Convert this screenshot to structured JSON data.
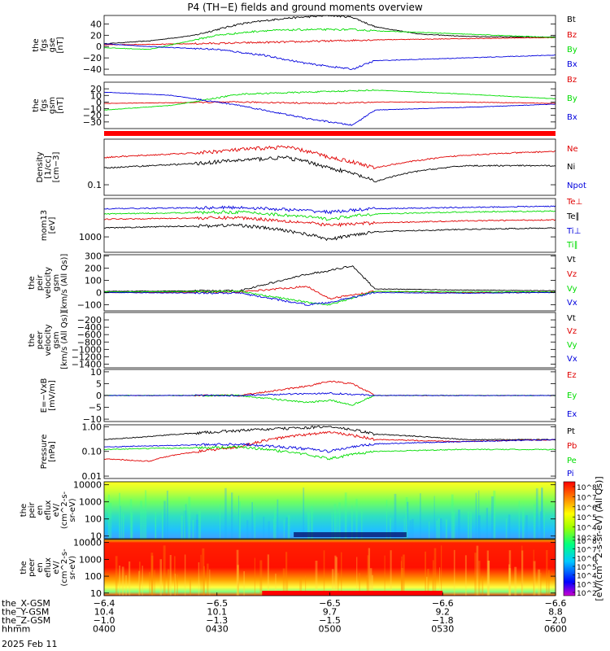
{
  "title": "P4 (TH−E) fields and ground moments overview",
  "date_label": "2025 Feb 11",
  "colors": {
    "black": "#000000",
    "red": "#e00000",
    "green": "#00dd00",
    "blue": "#0000dd",
    "strip": "#ff0000"
  },
  "chart_data": [
    {
      "type": "line",
      "id": "fgs_gse",
      "ylabel": [
        "the",
        "fgs",
        "gse",
        "[nT]"
      ],
      "ylim": [
        -50,
        55
      ],
      "yticks": [
        "40",
        "20",
        "0",
        "−20",
        "−40"
      ],
      "ytick_values": [
        40,
        20,
        0,
        -20,
        -40
      ],
      "series": [
        {
          "name": "Bt",
          "color": "#000000",
          "x": [
            0,
            0.1,
            0.2,
            0.25,
            0.3,
            0.4,
            0.5,
            0.55,
            0.6,
            0.7,
            0.8,
            0.9,
            1
          ],
          "y": [
            5,
            10,
            20,
            30,
            40,
            50,
            55,
            52,
            35,
            22,
            18,
            17,
            17
          ]
        },
        {
          "name": "Bz",
          "color": "#e00000",
          "x": [
            0,
            0.2,
            0.4,
            0.5,
            0.6,
            0.8,
            1
          ],
          "y": [
            3,
            5,
            8,
            10,
            12,
            14,
            16
          ]
        },
        {
          "name": "By",
          "color": "#00dd00",
          "x": [
            0,
            0.1,
            0.25,
            0.35,
            0.45,
            0.55,
            0.6,
            0.8,
            1
          ],
          "y": [
            -2,
            -5,
            20,
            28,
            30,
            30,
            28,
            22,
            16
          ]
        },
        {
          "name": "Bx",
          "color": "#0000dd",
          "x": [
            0,
            0.1,
            0.25,
            0.35,
            0.45,
            0.55,
            0.6,
            0.8,
            1
          ],
          "y": [
            5,
            0,
            -5,
            -15,
            -30,
            -40,
            -25,
            -20,
            -15
          ]
        }
      ]
    },
    {
      "type": "line",
      "id": "fgs_gsm",
      "ylabel": [
        "the",
        "fgs",
        "gsm",
        "[nT]"
      ],
      "ylim": [
        -40,
        30
      ],
      "yticks": [
        "20",
        "10",
        "0",
        "−10",
        "−20",
        "−30"
      ],
      "ytick_values": [
        20,
        10,
        0,
        -10,
        -20,
        -30
      ],
      "series": [
        {
          "name": "Bz",
          "color": "#e00000",
          "x": [
            0,
            0.3,
            0.5,
            0.6,
            0.8,
            1
          ],
          "y": [
            -2,
            0,
            -2,
            0,
            0,
            -2
          ]
        },
        {
          "name": "By",
          "color": "#00dd00",
          "x": [
            0,
            0.15,
            0.3,
            0.45,
            0.6,
            0.8,
            1
          ],
          "y": [
            -12,
            -5,
            12,
            15,
            18,
            12,
            5
          ]
        },
        {
          "name": "Bx",
          "color": "#0000dd",
          "x": [
            0,
            0.15,
            0.3,
            0.45,
            0.55,
            0.6,
            0.8,
            1
          ],
          "y": [
            15,
            10,
            -5,
            -25,
            -35,
            -12,
            -8,
            -3
          ]
        }
      ]
    },
    {
      "type": "line",
      "id": "density",
      "log": true,
      "ylabel": [
        "Density",
        "[1/cc]",
        "[cm−3]"
      ],
      "ylim": [
        0.05,
        2.0
      ],
      "yticks": [
        "0.1"
      ],
      "ytick_values": [
        0.1
      ],
      "series": [
        {
          "name": "Ne",
          "color": "#e00000",
          "x": [
            0,
            0.2,
            0.4,
            0.5,
            0.6,
            0.7,
            0.8,
            1
          ],
          "y": [
            0.6,
            0.8,
            1.2,
            0.6,
            0.3,
            0.5,
            0.7,
            0.9
          ]
        },
        {
          "name": "Ni",
          "color": "#000000",
          "x": [
            0,
            0.2,
            0.4,
            0.5,
            0.6,
            0.7,
            0.8,
            1
          ],
          "y": [
            0.3,
            0.4,
            0.6,
            0.3,
            0.12,
            0.25,
            0.35,
            0.35
          ]
        },
        {
          "name": "Npot",
          "color": "#0000dd",
          "x": [],
          "y": []
        }
      ]
    },
    {
      "type": "line",
      "id": "temperature",
      "log": true,
      "ylabel": [
        "mom13",
        "[eV]"
      ],
      "ylim": [
        300,
        20000
      ],
      "yticks": [
        "1000"
      ],
      "ytick_values": [
        1000
      ],
      "series": [
        {
          "name": "Te⊥",
          "color": "#e00000",
          "x": [
            0,
            0.3,
            0.5,
            0.6,
            0.8,
            1
          ],
          "y": [
            4000,
            4500,
            2500,
            3000,
            3500,
            3800
          ]
        },
        {
          "name": "Te∥",
          "color": "#000000",
          "x": [
            0,
            0.3,
            0.5,
            0.6,
            0.8,
            1
          ],
          "y": [
            2000,
            2500,
            800,
            1500,
            1800,
            2000
          ]
        },
        {
          "name": "Ti⊥",
          "color": "#0000dd",
          "x": [
            0,
            0.3,
            0.5,
            0.6,
            0.8,
            1
          ],
          "y": [
            9000,
            10000,
            7000,
            9000,
            10000,
            11000
          ]
        },
        {
          "name": "Ti∥",
          "color": "#00dd00",
          "x": [
            0,
            0.3,
            0.5,
            0.6,
            0.8,
            1
          ],
          "y": [
            6000,
            7000,
            4000,
            6000,
            7000,
            7500
          ]
        }
      ]
    },
    {
      "type": "line",
      "id": "peir_velocity",
      "ylabel": [
        "the",
        "peir",
        "velocity",
        "gsm",
        "[km/s (All Qs)]"
      ],
      "ylim": [
        -150,
        310
      ],
      "yticks": [
        "300",
        "200",
        "100",
        "0",
        "−100"
      ],
      "ytick_values": [
        300,
        200,
        100,
        0,
        -100
      ],
      "series": [
        {
          "name": "Vt",
          "color": "#000000",
          "x": [
            0,
            0.3,
            0.45,
            0.5,
            0.55,
            0.6,
            0.8,
            1
          ],
          "y": [
            10,
            15,
            150,
            180,
            220,
            30,
            20,
            15
          ]
        },
        {
          "name": "Vz",
          "color": "#e00000",
          "x": [
            0,
            0.3,
            0.45,
            0.5,
            0.6,
            0.8,
            1
          ],
          "y": [
            0,
            5,
            50,
            -50,
            10,
            0,
            5
          ]
        },
        {
          "name": "Vy",
          "color": "#00dd00",
          "x": [
            0,
            0.3,
            0.45,
            0.5,
            0.6,
            0.8,
            1
          ],
          "y": [
            5,
            10,
            -80,
            -100,
            10,
            5,
            5
          ]
        },
        {
          "name": "Vx",
          "color": "#0000dd",
          "x": [
            0,
            0.3,
            0.45,
            0.5,
            0.6,
            0.8,
            1
          ],
          "y": [
            0,
            -5,
            -100,
            -80,
            0,
            -5,
            0
          ]
        }
      ]
    },
    {
      "type": "line",
      "id": "peer_velocity",
      "ylabel": [
        "the",
        "peer",
        "velocity",
        "gsm",
        "[km/s (All Qs)]"
      ],
      "ylim": [
        -1500,
        0
      ],
      "yticks": [
        "−200",
        "−400",
        "−600",
        "−800",
        "−1000",
        "−1200",
        "−1400"
      ],
      "ytick_values": [
        -200,
        -400,
        -600,
        -800,
        -1000,
        -1200,
        -1400
      ],
      "series": [
        {
          "name": "Vt",
          "color": "#000000",
          "x": [],
          "y": []
        },
        {
          "name": "Vz",
          "color": "#e00000",
          "x": [],
          "y": []
        },
        {
          "name": "Vy",
          "color": "#00dd00",
          "x": [],
          "y": []
        },
        {
          "name": "Vx",
          "color": "#0000dd",
          "x": [],
          "y": []
        }
      ]
    },
    {
      "type": "line",
      "id": "efield",
      "ylabel": [
        "E=−VxB",
        "[mV/m]"
      ],
      "ylim": [
        -11,
        11
      ],
      "yticks": [
        "10",
        "5",
        "0",
        "−5",
        "−10"
      ],
      "ytick_values": [
        10,
        5,
        0,
        -5,
        -10
      ],
      "series": [
        {
          "name": "Ez",
          "color": "#e00000",
          "x": [
            0,
            0.3,
            0.45,
            0.5,
            0.55,
            0.6,
            0.8,
            1
          ],
          "y": [
            0,
            0,
            4,
            6,
            5,
            0,
            0,
            0
          ]
        },
        {
          "name": "Ey",
          "color": "#00dd00",
          "x": [
            0,
            0.3,
            0.45,
            0.5,
            0.55,
            0.6,
            0.8,
            1
          ],
          "y": [
            0,
            0,
            -3,
            -2,
            -4,
            0,
            0,
            0
          ]
        },
        {
          "name": "Ex",
          "color": "#0000dd",
          "x": [
            0,
            0.3,
            0.5,
            0.6,
            0.8,
            1
          ],
          "y": [
            0,
            0,
            1,
            0,
            0,
            0
          ]
        }
      ]
    },
    {
      "type": "line",
      "id": "pressure",
      "log": true,
      "ylabel": [
        "Pressure",
        "[nPa]"
      ],
      "ylim": [
        0.008,
        1.2
      ],
      "yticks": [
        "1.00",
        "0.10",
        "0.01"
      ],
      "ytick_values": [
        1.0,
        0.1,
        0.01
      ],
      "series": [
        {
          "name": "Pt",
          "color": "#000000",
          "x": [
            0,
            0.1,
            0.3,
            0.5,
            0.6,
            0.8,
            1
          ],
          "y": [
            0.3,
            0.4,
            0.7,
            1.0,
            0.5,
            0.3,
            0.3
          ]
        },
        {
          "name": "Pb",
          "color": "#e00000",
          "x": [
            0,
            0.1,
            0.3,
            0.5,
            0.6,
            0.8,
            1
          ],
          "y": [
            0.05,
            0.04,
            0.15,
            0.6,
            0.3,
            0.25,
            0.3
          ]
        },
        {
          "name": "Pe",
          "color": "#00dd00",
          "x": [
            0,
            0.3,
            0.5,
            0.6,
            0.8,
            1
          ],
          "y": [
            0.12,
            0.15,
            0.05,
            0.1,
            0.12,
            0.12
          ]
        },
        {
          "name": "Pi",
          "color": "#0000dd",
          "x": [
            0,
            0.3,
            0.5,
            0.6,
            0.8,
            1
          ],
          "y": [
            0.15,
            0.2,
            0.1,
            0.2,
            0.25,
            0.3
          ]
        }
      ]
    },
    {
      "type": "heatmap",
      "id": "peir_eflux",
      "ylabel": [
        "the",
        "peir",
        "en",
        "eflux",
        "eV/",
        "(cm^2-s-",
        "sr-eV)"
      ],
      "yticks": [
        "10000",
        "1000",
        "100",
        "10"
      ],
      "ytick_values": [
        10000,
        1000,
        100,
        10
      ],
      "ylim": [
        7,
        15000
      ],
      "log": true
    },
    {
      "type": "heatmap",
      "id": "peer_eflux",
      "ylabel": [
        "the",
        "peer",
        "en",
        "eflux",
        "eV/",
        "(cm^2-s-",
        "sr-eV)"
      ],
      "yticks": [
        "10000",
        "1000",
        "100",
        "10"
      ],
      "ytick_values": [
        10000,
        1000,
        100,
        10
      ],
      "ylim": [
        7,
        15000
      ],
      "log": true
    }
  ],
  "colorbar": {
    "label": "[eV/(cm^2-s-sr-eV) (All Qs)]",
    "ticks_top": [
      "10^8",
      "10^7",
      "10^6",
      "10^5",
      "10^4",
      "10^3"
    ],
    "ticks_bottom": [
      "10^8",
      "10^7",
      "10^6",
      "10^5",
      "10^4",
      "10^3",
      "10^2"
    ]
  },
  "x_axis": {
    "ticks": [
      "0400",
      "0430",
      "0500",
      "0530",
      "0600"
    ],
    "rows": [
      {
        "label": "the_X-GSM",
        "values": [
          "−6.4",
          "−6.5",
          "−6.5",
          "−6.6",
          "−6.6"
        ]
      },
      {
        "label": "the_Y-GSM",
        "values": [
          "10.4",
          "10.1",
          "9.7",
          "9.2",
          "8.8"
        ]
      },
      {
        "label": "the_Z-GSM",
        "values": [
          "−1.0",
          "−1.3",
          "−1.5",
          "−1.8",
          "−2.0"
        ]
      },
      {
        "label": "hhmm",
        "values": [
          "0400",
          "0430",
          "0500",
          "0530",
          "0600"
        ]
      }
    ]
  }
}
